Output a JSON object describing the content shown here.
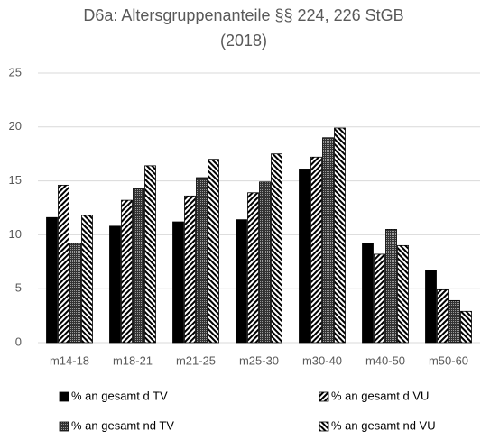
{
  "chart_data": {
    "type": "bar",
    "title": "D6a: Altersgruppenanteile §§ 224, 226 StGB",
    "subtitle": "(2018)",
    "categories": [
      "m14-18",
      "m18-21",
      "m21-25",
      "m25-30",
      "m30-40",
      "m40-50",
      "m50-60"
    ],
    "series": [
      {
        "name": "% an gesamt d TV",
        "color": "#000000",
        "pattern": "solid",
        "values": [
          11.6,
          10.8,
          11.2,
          11.4,
          16.1,
          9.2,
          6.7
        ]
      },
      {
        "name": "% an gesamt d VU",
        "color": "#000000",
        "pattern": "diagonal",
        "values": [
          14.6,
          13.2,
          13.6,
          13.9,
          17.2,
          8.2,
          4.9
        ]
      },
      {
        "name": "% an gesamt nd TV",
        "color": "#000000",
        "pattern": "dotted",
        "values": [
          9.2,
          14.3,
          15.3,
          14.9,
          19.0,
          10.5,
          3.9
        ]
      },
      {
        "name": "% an gesamt nd VU",
        "color": "#000000",
        "pattern": "backdiagonal",
        "values": [
          11.8,
          16.4,
          17.0,
          17.5,
          19.9,
          9.0,
          2.9
        ]
      }
    ],
    "ylim": [
      0,
      25
    ],
    "yticks": [
      0,
      5,
      10,
      15,
      20,
      25
    ],
    "grid": true,
    "legend": "bottom"
  }
}
